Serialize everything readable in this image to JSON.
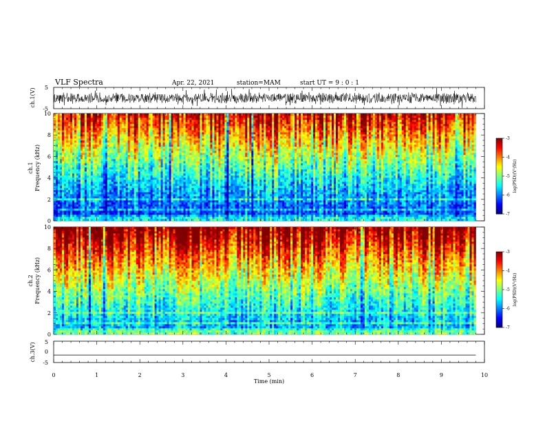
{
  "header": {
    "title": "VLF Spectra",
    "date": "Apr. 22, 2021",
    "station": "station=MAM",
    "start": "start UT =  9 : 0 : 1"
  },
  "chart_data": [
    {
      "type": "line",
      "panel": "ch1-waveform",
      "ylabel": "ch.1(V)",
      "ylim": [
        -5,
        5
      ],
      "yticks": [
        "5",
        "-5"
      ],
      "xlim": [
        0,
        10
      ],
      "note_noise_amplitude_V": 2.5
    },
    {
      "type": "heatmap",
      "panel": "ch1-spectrogram",
      "ylabel_top": "ch.1",
      "ylabel": "Frequency (kHz)",
      "ylim": [
        0,
        10
      ],
      "yticks": [
        "0",
        "2",
        "4",
        "6",
        "8",
        "10"
      ],
      "xlim": [
        0,
        9.8
      ],
      "colorbar": {
        "label": "log(PSD)(V²/Hz)",
        "range": [
          -7,
          -3
        ],
        "ticks": [
          "-3",
          "-4",
          "-5",
          "-6",
          "-7"
        ]
      },
      "seed": 11
    },
    {
      "type": "heatmap",
      "panel": "ch2-spectrogram",
      "ylabel_top": "ch.2",
      "ylabel": "Frequency (kHz)",
      "ylim": [
        0,
        10
      ],
      "yticks": [
        "0",
        "2",
        "4",
        "6",
        "8",
        "10"
      ],
      "xlim": [
        0,
        9.8
      ],
      "colorbar": {
        "label": "log(PSD)(V²/Hz)",
        "range": [
          -7,
          -3
        ],
        "ticks": [
          "-3",
          "-4",
          "-5",
          "-6",
          "-7"
        ]
      },
      "seed": 29
    },
    {
      "type": "line",
      "panel": "ch3-waveform",
      "ylabel": "ch.3(V)",
      "ylim": [
        -5,
        5
      ],
      "yticks": [
        "5",
        "0",
        "-5"
      ],
      "xlim": [
        0,
        10
      ],
      "values_const": -1.5
    }
  ],
  "xaxis": {
    "label": "Time (min)",
    "ticks": [
      "0",
      "1",
      "2",
      "3",
      "4",
      "5",
      "6",
      "7",
      "8",
      "9",
      "10"
    ],
    "range": [
      0,
      10
    ]
  }
}
